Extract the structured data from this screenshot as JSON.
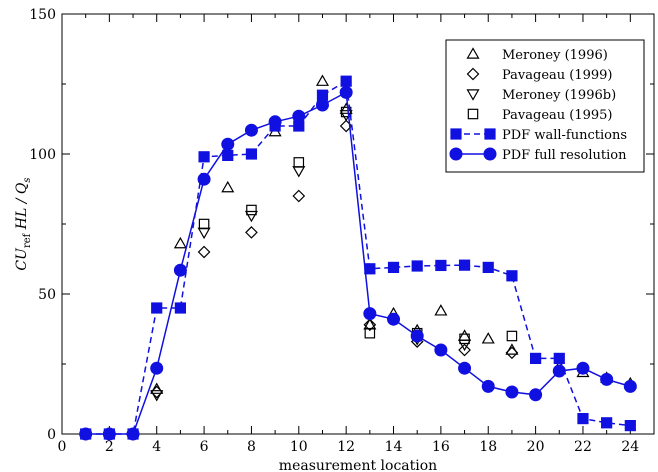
{
  "chart_data": {
    "type": "scatter",
    "xlabel": "measurement location",
    "ylabel": "CU_ref HL / Q_s",
    "ylabel_parts": {
      "pre": "CU",
      "sub": "ref",
      "post": " HL / Q",
      "sub2": "s"
    },
    "xlim": [
      0,
      25
    ],
    "ylim": [
      0,
      150
    ],
    "xticks": [
      0,
      2,
      4,
      6,
      8,
      10,
      12,
      14,
      16,
      18,
      20,
      22,
      24
    ],
    "xticks_minor": [
      1,
      3,
      5,
      7,
      9,
      11,
      13,
      15,
      17,
      19,
      21,
      23
    ],
    "yticks": [
      0,
      50,
      100,
      150
    ],
    "yticks_minor": [
      25,
      75,
      125
    ],
    "grid": false,
    "legend_position": "top-right",
    "series": [
      {
        "name": "Meroney (1996)",
        "marker": "triangle-up",
        "color": "#000000",
        "line": "none",
        "x": [
          4,
          5,
          7,
          9,
          11,
          12,
          13,
          14,
          15,
          16,
          17,
          18,
          19,
          21,
          22,
          23,
          24
        ],
        "y": [
          16,
          68,
          88,
          108,
          126,
          116,
          39,
          43,
          37,
          44,
          35,
          34,
          30,
          24,
          22,
          20,
          18
        ]
      },
      {
        "name": "Pavageau (1999)",
        "marker": "diamond",
        "color": "#000000",
        "line": "none",
        "x": [
          4,
          6,
          8,
          10,
          12,
          13,
          15,
          17,
          19
        ],
        "y": [
          15,
          65,
          72,
          85,
          110,
          39,
          33,
          30,
          29
        ]
      },
      {
        "name": "Meroney (1996b)",
        "marker": "triangle-down",
        "color": "#000000",
        "line": "none",
        "x": [
          4,
          6,
          8,
          10,
          12,
          15,
          17
        ],
        "y": [
          14,
          72,
          78,
          94,
          114,
          34,
          32
        ]
      },
      {
        "name": "Pavageau (1995)",
        "marker": "square-open",
        "color": "#000000",
        "line": "none",
        "x": [
          6,
          8,
          10,
          12,
          13,
          15,
          17,
          19
        ],
        "y": [
          75,
          80,
          97,
          115,
          36,
          36,
          34,
          35
        ]
      },
      {
        "name": "PDF wall-functions",
        "marker": "square-filled",
        "color": "#1010e0",
        "line": "dashed",
        "x": [
          1,
          2,
          3,
          4,
          5,
          6,
          7,
          8,
          9,
          10,
          11,
          12,
          13,
          14,
          15,
          16,
          17,
          18,
          19,
          20,
          21,
          22,
          23,
          24
        ],
        "y": [
          0,
          0,
          0,
          45,
          45,
          99,
          99.5,
          100,
          110,
          110,
          121,
          126,
          59,
          59.5,
          60,
          60.2,
          60.3,
          59.5,
          56.5,
          27,
          27,
          5.5,
          4,
          3
        ]
      },
      {
        "name": "PDF full resolution",
        "marker": "circle-filled",
        "color": "#1010e0",
        "line": "solid",
        "x": [
          1,
          2,
          3,
          4,
          5,
          6,
          7,
          8,
          9,
          10,
          11,
          12,
          13,
          14,
          15,
          16,
          17,
          18,
          19,
          20,
          21,
          22,
          23,
          24
        ],
        "y": [
          0,
          0,
          0,
          23.5,
          58.5,
          91,
          103.5,
          108.5,
          111.5,
          113.5,
          117.5,
          122,
          43,
          41,
          35,
          30,
          23.5,
          17,
          15,
          14,
          22.5,
          23.5,
          19.5,
          17
        ]
      }
    ]
  }
}
